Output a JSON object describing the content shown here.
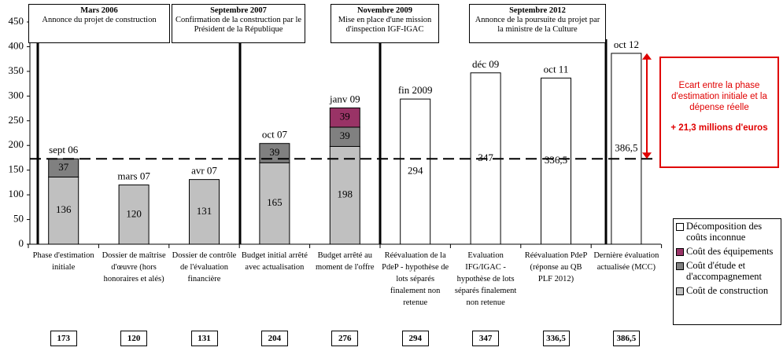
{
  "chart_data": {
    "type": "bar",
    "stacked": true,
    "categories": [
      "Phase d'estimation initiale",
      "Dossier de maîtrise d'œuvre (hors honoraires et alés)",
      "Dossier de contrôle de l'évaluation financière",
      "Budget initial arrêté avec actualisation",
      "Budget arrêté au moment de l'offre",
      "Réévaluation de la PdeP - hypothèse de lots séparés finalement non retenue",
      "Evaluation IFG/IGAC - hypothèse de lots séparés finalement non retenue",
      "Réévaluation PdeP (réponse au QB PLF 2012)",
      "Dernière évaluation actualisée (MCC)"
    ],
    "top_labels": [
      "sept 06",
      "mars 07",
      "avr 07",
      "oct 07",
      "janv 09",
      "fin 2009",
      "déc 09",
      "oct 11",
      "oct 12"
    ],
    "series": [
      {
        "name": "Coût de construction",
        "color": "#c0c0c0",
        "values": [
          136,
          120,
          131,
          165,
          198,
          null,
          null,
          null,
          null
        ]
      },
      {
        "name": "Coût d'étude et d'accompagnement",
        "color": "#808080",
        "values": [
          37,
          null,
          null,
          39,
          39,
          null,
          null,
          null,
          null
        ]
      },
      {
        "name": "Coût des équipements",
        "color": "#993366",
        "values": [
          null,
          null,
          null,
          null,
          39,
          null,
          null,
          null,
          null
        ]
      },
      {
        "name": "Décomposition des coûts inconnue",
        "color": "#ffffff",
        "values": [
          null,
          null,
          null,
          null,
          null,
          294,
          347,
          336.5,
          386.5
        ],
        "value_labels": [
          null,
          null,
          null,
          null,
          null,
          "294",
          "347",
          "336,5",
          "386,5"
        ]
      }
    ],
    "ylim": [
      0,
      450
    ],
    "yticks": [
      0,
      50,
      100,
      150,
      200,
      250,
      300,
      350,
      400,
      450
    ],
    "reference_value": 173,
    "totals": [
      173,
      120,
      131,
      204,
      276,
      294,
      347,
      {
        "value": 336.5,
        "label": "336,5"
      },
      {
        "value": 386.5,
        "label": "386,5"
      }
    ],
    "events": [
      {
        "date": "Mars 2006",
        "text": "Annonce du projet de construction"
      },
      {
        "date": "Septembre 2007",
        "text": "Confirmation de la construction par le Président de la République"
      },
      {
        "date": "Novembre 2009",
        "text": "Mise en place d'une mission d'inspection IGF-IGAC"
      },
      {
        "date": "Septembre 2012",
        "text": "Annonce de la poursuite du projet par la ministre de la Culture"
      }
    ],
    "annotation": {
      "text": "Ecart entre la phase d'estimation initiale et la dépense réelle",
      "highlight": "+ 21,3 millions d'euros"
    }
  }
}
